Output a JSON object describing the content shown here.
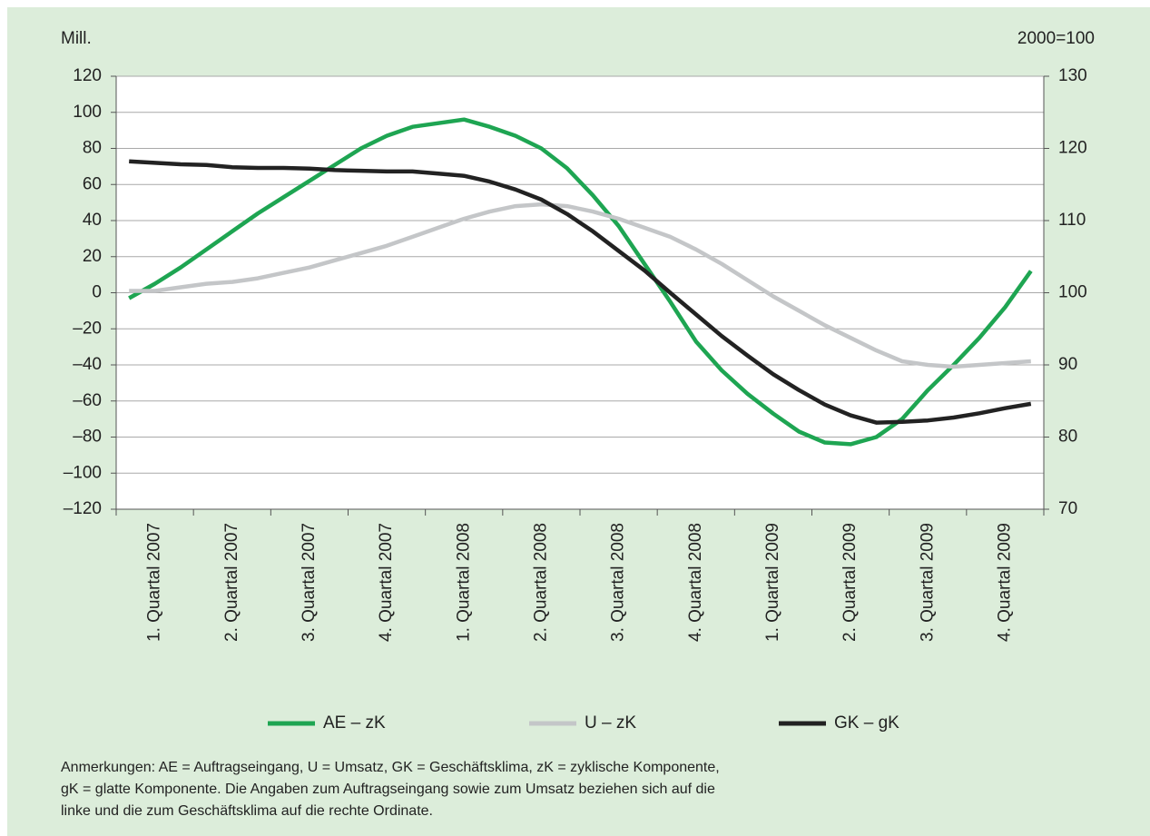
{
  "chart_data": {
    "type": "line",
    "ylabel": "Mill.",
    "y2label": "2000=100",
    "categories": [
      null,
      "1. Quartal 2007",
      null,
      null,
      "2. Quartal 2007",
      null,
      null,
      "3. Quartal 2007",
      null,
      null,
      "4. Quartal 2007",
      null,
      null,
      "1. Quartal 2008",
      null,
      null,
      "2. Quartal 2008",
      null,
      null,
      "3. Quartal 2008",
      null,
      null,
      "4. Quartal 2008",
      null,
      null,
      "1. Quartal 2009",
      null,
      null,
      "2. Quartal 2009",
      null,
      null,
      "3. Quartal 2009",
      null,
      null,
      "4. Quartal 2009",
      null
    ],
    "series": [
      {
        "name": "AE – zK",
        "color": "#1ea552",
        "values": [
          -3,
          5,
          14,
          24,
          34,
          44,
          53,
          62,
          71,
          80,
          87,
          92,
          94,
          96,
          92,
          87,
          80,
          69,
          54,
          37,
          16,
          -5,
          -27,
          -43,
          -56,
          -67,
          -77,
          -83,
          -84,
          -80,
          -70,
          -54,
          -40,
          -25,
          -8,
          12
        ]
      },
      {
        "name": "U – zK",
        "color": "#c4c6c8",
        "values": [
          1,
          1,
          3,
          5,
          6,
          8,
          11,
          14,
          18,
          22,
          26,
          31,
          36,
          41,
          45,
          48,
          49,
          48,
          45,
          41,
          36,
          31,
          24,
          16,
          7,
          -2,
          -10,
          -18,
          -25,
          -32,
          -38,
          -40,
          -41,
          -40,
          -39,
          -38
        ]
      },
      {
        "name": "GK – gK",
        "color": "#222222",
        "axis": "y2",
        "values": [
          118.2,
          118.0,
          117.8,
          117.7,
          117.4,
          117.3,
          117.3,
          117.2,
          117.0,
          116.9,
          116.8,
          116.8,
          116.5,
          116.2,
          115.4,
          114.3,
          112.9,
          110.9,
          108.5,
          105.8,
          103.1,
          100,
          97,
          94,
          91.3,
          88.7,
          86.5,
          84.5,
          83,
          82,
          82.1,
          82.3,
          82.7,
          83.3,
          84,
          84.6
        ]
      }
    ],
    "ylim": [
      -120,
      120
    ],
    "yticks": [
      {
        "value": -120,
        "label": "–120"
      },
      {
        "value": -100,
        "label": "–100"
      },
      {
        "value": -80,
        "label": "–80"
      },
      {
        "value": -60,
        "label": "–60"
      },
      {
        "value": -40,
        "label": "–40"
      },
      {
        "value": -20,
        "label": "–20"
      },
      0,
      20,
      40,
      60,
      80,
      100,
      120
    ],
    "y2lim": [
      70,
      130
    ],
    "y2ticks": [
      70,
      80,
      90,
      100,
      110,
      120,
      130
    ],
    "grid": true,
    "legend": "bottom",
    "notes": [
      "Anmerkungen: AE = Auftragseingang, U = Umsatz, GK = Geschäftsklima, zK = zyklische Komponente,",
      "gK = glatte Komponente. Die Angaben zum Auftragseingang sowie zum Umsatz beziehen sich auf die",
      "linke und die zum Geschäftsklima auf die rechte Ordinate."
    ]
  }
}
